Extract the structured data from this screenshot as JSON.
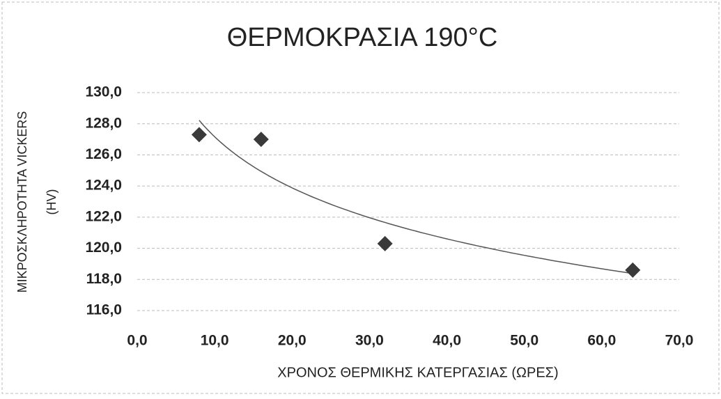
{
  "chart_data": {
    "type": "scatter",
    "title": "ΘΕΡΜΟΚΡΑΣΙΑ 190°C",
    "x_label": "ΧΡΟΝΟΣ ΘΕΡΜΙΚΗΣ ΚΑΤΕΡΓΑΣΙΑΣ (ΩΡΕΣ)",
    "y_label": [
      "ΜΙΚΡΟΣΚΛΗΡΟΤΗΤΑ VICKERS",
      "(HV)"
    ],
    "series": [
      {
        "color": "#3a3a3a",
        "x": [
          8,
          16,
          32,
          64
        ],
        "values": [
          127.3,
          127.0,
          120.3,
          118.6
        ]
      }
    ],
    "trendline": "logarithmic",
    "xlim": [
      0,
      70
    ],
    "xticks": [
      {
        "value": 0,
        "label": "0,0"
      },
      {
        "value": 10,
        "label": "10,0"
      },
      {
        "value": 20,
        "label": "20,0"
      },
      {
        "value": 30,
        "label": "30,0"
      },
      {
        "value": 40,
        "label": "40,0"
      },
      {
        "value": 50,
        "label": "50,0"
      },
      {
        "value": 60,
        "label": "60,0"
      },
      {
        "value": 70,
        "label": "70,0"
      }
    ],
    "ylim": [
      116,
      130
    ],
    "yticks": [
      {
        "value": 116,
        "label": "116,0"
      },
      {
        "value": 118,
        "label": "118,0"
      },
      {
        "value": 120,
        "label": "120,0"
      },
      {
        "value": 122,
        "label": "122,0"
      },
      {
        "value": 124,
        "label": "124,0"
      },
      {
        "value": 126,
        "label": "126,0"
      },
      {
        "value": 128,
        "label": "128,0"
      },
      {
        "value": 130,
        "label": "130,0"
      }
    ],
    "grid": true
  }
}
